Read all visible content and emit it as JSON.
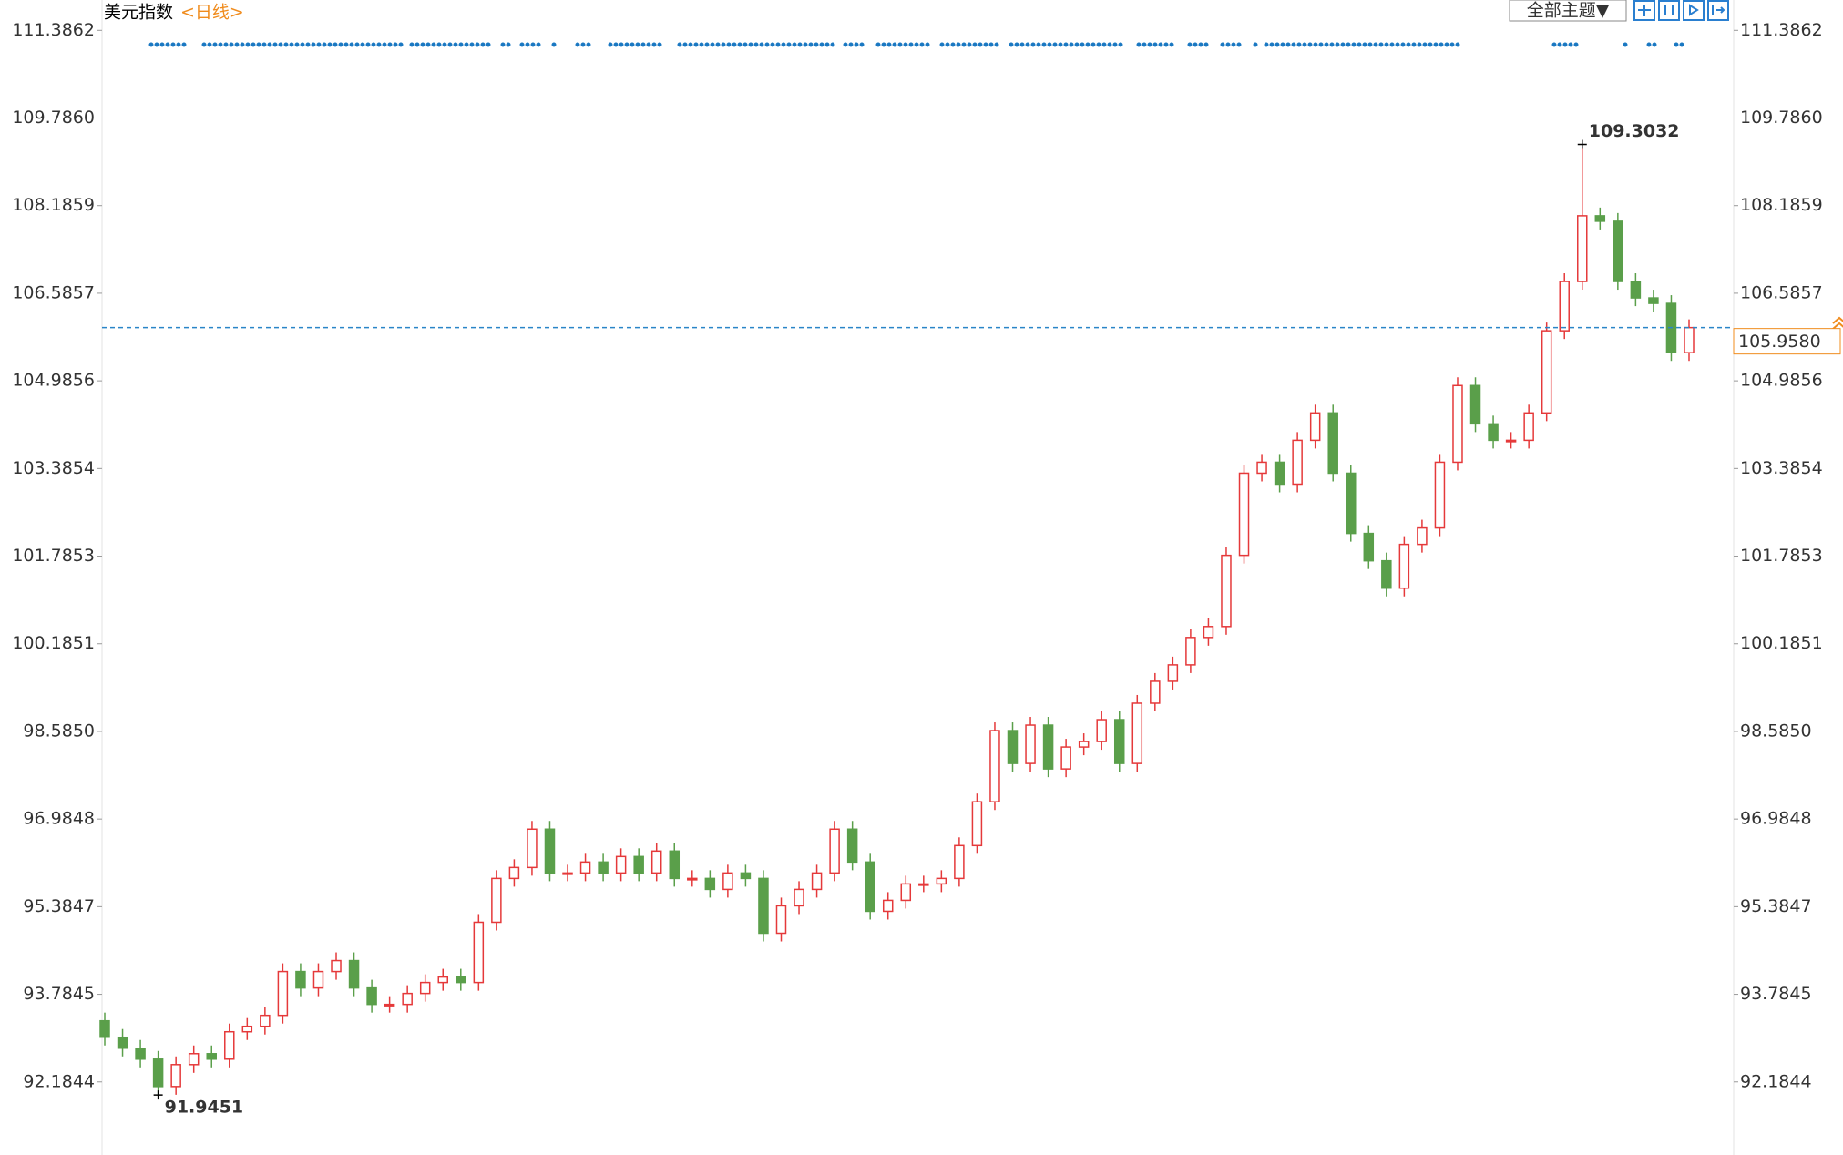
{
  "chart_data": {
    "type": "candlestick",
    "title": "美元指数",
    "period": "<日线>",
    "toolbar_button": "全部主题▼",
    "up_color": "#e5393a",
    "down_color": "#5a9f4a",
    "ylim": [
      90.85,
      111.94
    ],
    "yticks": [
      111.3862,
      {
        "value": 109.786,
        "label": "109.7860"
      },
      108.1859,
      106.5857,
      104.9856,
      103.3854,
      101.7853,
      100.1851,
      {
        "value": 98.585,
        "label": "98.5850"
      },
      96.9848,
      95.3847,
      93.7845,
      92.1844
    ],
    "max_annotation": 109.3032,
    "min_annotation": 91.9451,
    "current_price": {
      "value": 105.958,
      "label": "105.9580"
    },
    "open": [
      93.3,
      93.0,
      92.8,
      92.6,
      92.1,
      92.5,
      92.7,
      92.6,
      93.1,
      93.2,
      93.4,
      94.2,
      93.9,
      94.2,
      94.4,
      93.9,
      93.6,
      93.6,
      93.8,
      94.0,
      94.1,
      94.0,
      95.1,
      95.9,
      96.1,
      96.8,
      96.0,
      96.0,
      96.2,
      96.0,
      96.3,
      96.0,
      96.4,
      95.9,
      95.9,
      95.7,
      96.0,
      95.9,
      94.9,
      95.4,
      95.7,
      96.0,
      96.8,
      96.2,
      95.3,
      95.5,
      95.8,
      95.8,
      95.9,
      96.5,
      97.3,
      98.6,
      98.0,
      98.7,
      97.9,
      98.3,
      98.4,
      98.8,
      98.0,
      99.1,
      99.5,
      99.8,
      100.3,
      100.5,
      101.8,
      103.3,
      103.5,
      103.1,
      103.9,
      104.4,
      103.3,
      102.2,
      101.7,
      101.2,
      102.0,
      102.3,
      103.5,
      104.9,
      104.2,
      103.9,
      103.9,
      104.4,
      105.9,
      106.8,
      108.0,
      107.9,
      106.8,
      106.5,
      106.4,
      105.5
    ],
    "high": [
      93.45,
      93.15,
      92.95,
      92.75,
      92.65,
      92.85,
      92.85,
      93.25,
      93.35,
      93.55,
      94.35,
      94.35,
      94.35,
      94.55,
      94.55,
      94.05,
      93.75,
      93.95,
      94.15,
      94.25,
      94.25,
      95.25,
      96.05,
      96.25,
      96.95,
      96.95,
      96.15,
      96.35,
      96.35,
      96.45,
      96.45,
      96.55,
      96.55,
      96.05,
      96.05,
      96.15,
      96.15,
      96.05,
      95.55,
      95.85,
      96.15,
      96.95,
      96.95,
      96.35,
      95.65,
      95.95,
      95.95,
      96.05,
      96.65,
      97.45,
      98.75,
      98.75,
      98.85,
      98.85,
      98.45,
      98.55,
      98.95,
      98.95,
      99.25,
      99.65,
      99.95,
      100.45,
      100.65,
      101.95,
      103.45,
      103.65,
      103.65,
      104.05,
      104.55,
      104.55,
      103.45,
      102.35,
      101.85,
      102.15,
      102.45,
      103.65,
      105.05,
      105.05,
      104.35,
      104.05,
      104.55,
      106.05,
      106.95,
      109.3032,
      108.15,
      108.05,
      106.95,
      106.65,
      106.55,
      106.108
    ],
    "low": [
      92.85,
      92.65,
      92.45,
      91.9451,
      91.95,
      92.35,
      92.45,
      92.45,
      92.95,
      93.05,
      93.25,
      93.75,
      93.75,
      94.05,
      93.75,
      93.45,
      93.45,
      93.45,
      93.65,
      93.85,
      93.85,
      93.85,
      94.95,
      95.75,
      95.95,
      95.85,
      95.85,
      95.85,
      95.85,
      95.85,
      95.85,
      95.85,
      95.75,
      95.75,
      95.55,
      95.55,
      95.75,
      94.75,
      94.75,
      95.25,
      95.55,
      95.85,
      96.05,
      95.15,
      95.15,
      95.35,
      95.65,
      95.65,
      95.75,
      96.35,
      97.15,
      97.85,
      97.85,
      97.75,
      97.75,
      98.15,
      98.25,
      97.85,
      97.85,
      98.95,
      99.35,
      99.65,
      100.15,
      100.35,
      101.65,
      103.15,
      102.95,
      102.95,
      103.75,
      103.15,
      102.05,
      101.55,
      101.05,
      101.05,
      101.85,
      102.15,
      103.35,
      104.05,
      103.75,
      103.75,
      103.75,
      104.25,
      105.75,
      106.65,
      107.75,
      106.65,
      106.35,
      106.25,
      105.35,
      105.35
    ],
    "close": [
      93.0,
      92.8,
      92.6,
      92.1,
      92.5,
      92.7,
      92.6,
      93.1,
      93.2,
      93.4,
      94.2,
      93.9,
      94.2,
      94.4,
      93.9,
      93.6,
      93.6,
      93.8,
      94.0,
      94.1,
      94.0,
      95.1,
      95.9,
      96.1,
      96.8,
      96.0,
      96.0,
      96.2,
      96.0,
      96.3,
      96.0,
      96.4,
      95.9,
      95.9,
      95.7,
      96.0,
      95.9,
      94.9,
      95.4,
      95.7,
      96.0,
      96.8,
      96.2,
      95.3,
      95.5,
      95.8,
      95.8,
      95.9,
      96.5,
      97.3,
      98.6,
      98.0,
      98.7,
      97.9,
      98.3,
      98.4,
      98.8,
      98.0,
      99.1,
      99.5,
      99.8,
      100.3,
      100.5,
      101.8,
      103.3,
      103.5,
      103.1,
      103.9,
      104.4,
      103.3,
      102.2,
      101.7,
      101.2,
      102.0,
      102.3,
      103.5,
      104.9,
      104.2,
      103.9,
      103.9,
      104.4,
      105.9,
      106.8,
      108.0,
      107.9,
      106.8,
      106.5,
      106.4,
      105.5,
      105.958
    ]
  }
}
